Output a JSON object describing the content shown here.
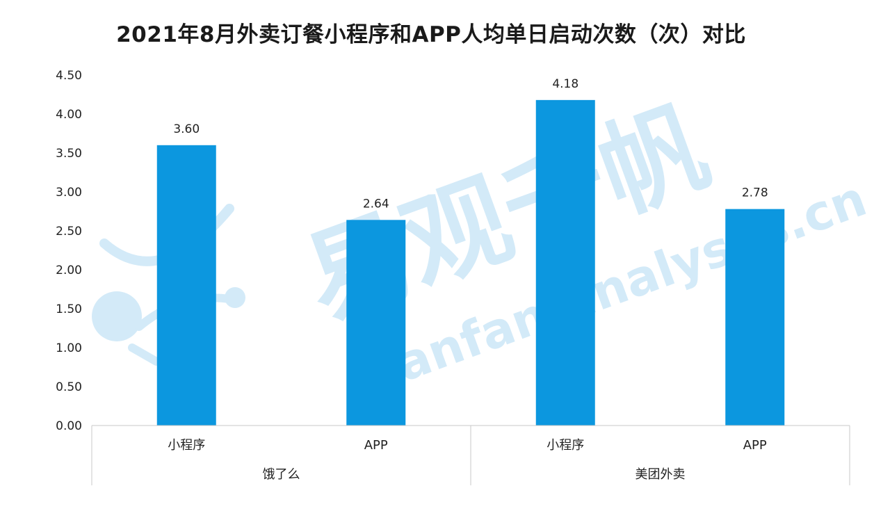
{
  "chart_data": {
    "type": "bar",
    "title": "2021年8月外卖订餐小程序和APP人均单日启动次数（次）对比",
    "groups": [
      {
        "name": "饿了么",
        "categories": [
          "小程序",
          "APP"
        ],
        "values": [
          3.6,
          2.64
        ]
      },
      {
        "name": "美团外卖",
        "categories": [
          "小程序",
          "APP"
        ],
        "values": [
          4.18,
          2.78
        ]
      }
    ],
    "y_ticks": [
      "0.00",
      "0.50",
      "1.00",
      "1.50",
      "2.00",
      "2.50",
      "3.00",
      "3.50",
      "4.00",
      "4.50"
    ],
    "ylim": [
      0,
      4.5
    ],
    "grid": false,
    "legend": "none",
    "bar_color": "#0c97df",
    "value_labels": [
      "3.60",
      "2.64",
      "4.18",
      "2.78"
    ]
  },
  "watermark": {
    "brand": "易观千帆",
    "url": "qianfan.analysys.cn",
    "color": "#d3eaf8"
  }
}
